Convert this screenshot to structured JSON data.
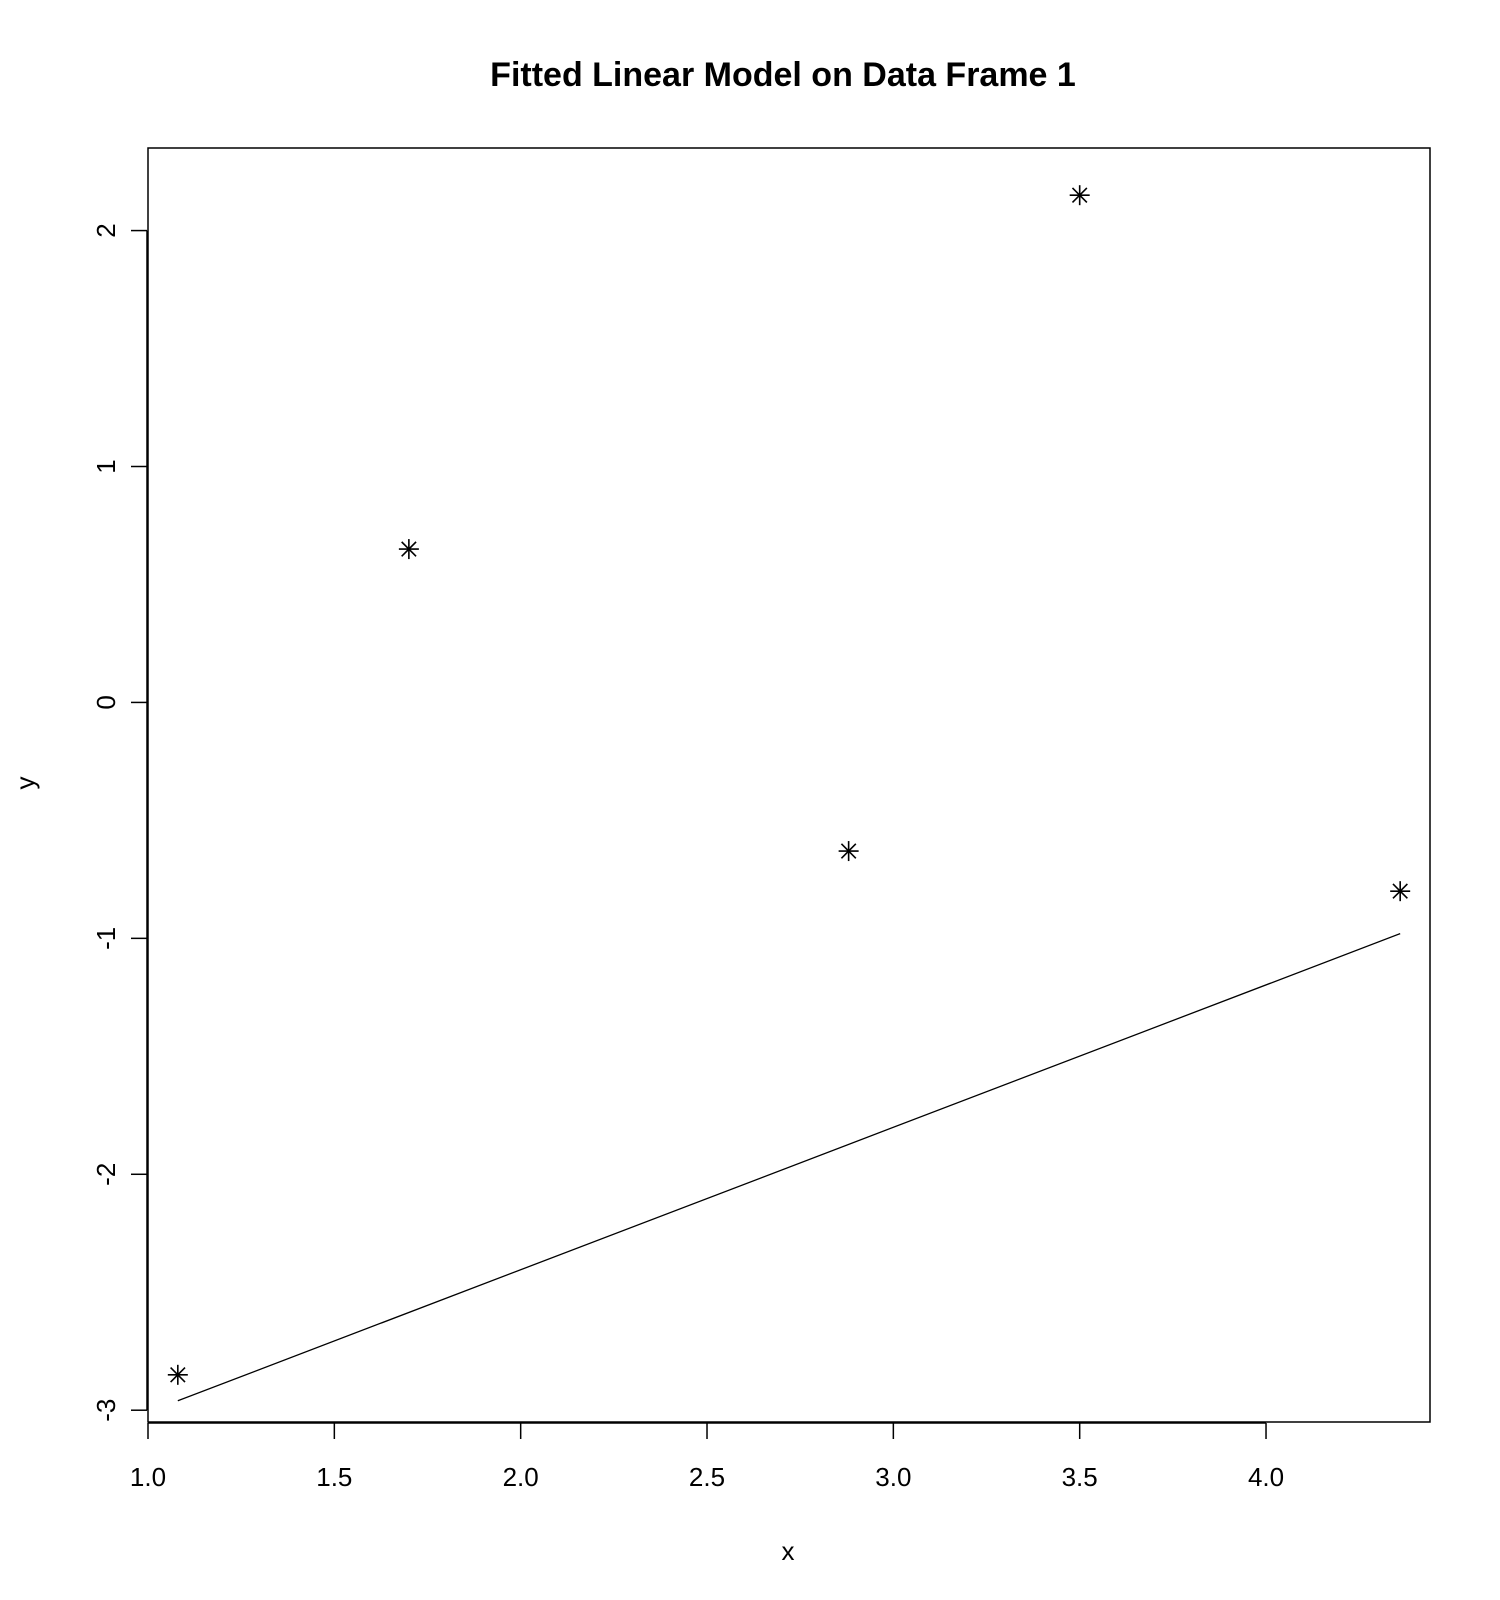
{
  "chart_data": {
    "type": "scatter",
    "title": "Fitted Linear Model on Data Frame 1",
    "xlabel": "x",
    "ylabel": "y",
    "xlim": [
      1.0,
      4.44
    ],
    "ylim": [
      -3.05,
      2.35
    ],
    "x_ticks": [
      1.0,
      1.5,
      2.0,
      2.5,
      3.0,
      3.5,
      4.0
    ],
    "x_tick_labels": [
      "1.0",
      "1.5",
      "2.0",
      "2.5",
      "3.0",
      "3.5",
      "4.0"
    ],
    "y_ticks": [
      -3,
      -2,
      -1,
      0,
      1,
      2
    ],
    "y_tick_labels": [
      "-3",
      "-2",
      "-1",
      "0",
      "1",
      "2"
    ],
    "grid": false,
    "points": [
      {
        "x": 1.08,
        "y": -2.85
      },
      {
        "x": 1.7,
        "y": 0.65
      },
      {
        "x": 2.88,
        "y": -0.63
      },
      {
        "x": 3.5,
        "y": 2.15
      },
      {
        "x": 4.36,
        "y": -0.8
      }
    ],
    "point_marker": "asterisk",
    "fit_line": {
      "x": [
        1.08,
        4.36
      ],
      "y": [
        -2.96,
        -0.98
      ]
    }
  }
}
